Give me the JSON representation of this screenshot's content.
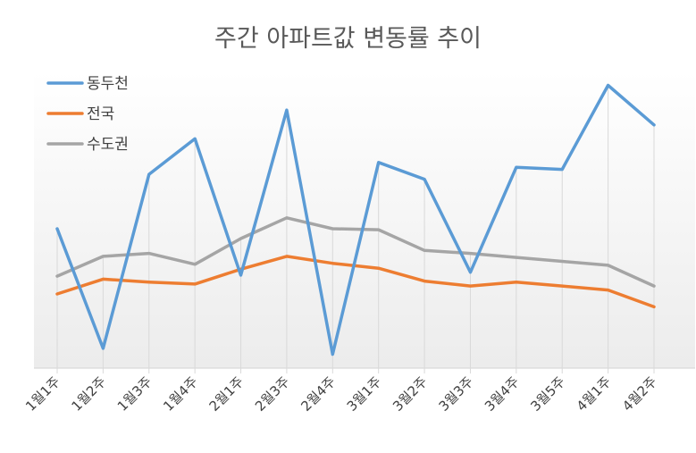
{
  "chart_data": {
    "type": "line",
    "title": "주간 아파트값 변동률 추이",
    "xlabel": "",
    "ylabel": "",
    "categories": [
      "1월1주",
      "1월2주",
      "1월3주",
      "1월4주",
      "2월1주",
      "2월3주",
      "2월4주",
      "3월1주",
      "3월2주",
      "3월3주",
      "3월4주",
      "3월5주",
      "4월1주",
      "4월2주"
    ],
    "series": [
      {
        "name": "동두천",
        "color": "#5B9BD5",
        "values": [
          0.141,
          0.02,
          0.196,
          0.232,
          0.094,
          0.261,
          0.014,
          0.208,
          0.191,
          0.097,
          0.203,
          0.201,
          0.286,
          0.246
        ]
      },
      {
        "name": "전국",
        "color": "#ED7D31",
        "values": [
          0.075,
          0.09,
          0.087,
          0.085,
          0.1,
          0.113,
          0.106,
          0.101,
          0.088,
          0.083,
          0.087,
          0.083,
          0.079,
          0.062
        ]
      },
      {
        "name": "수도권",
        "color": "#A5A5A5",
        "values": [
          0.093,
          0.113,
          0.116,
          0.105,
          0.131,
          0.152,
          0.141,
          0.14,
          0.119,
          0.116,
          0.112,
          0.108,
          0.104,
          0.083
        ]
      }
    ],
    "ylim": [
      0,
      0.3
    ],
    "grid": false,
    "gridlines_vertical": true,
    "legend_position": "top-left",
    "background_gradient": true
  }
}
